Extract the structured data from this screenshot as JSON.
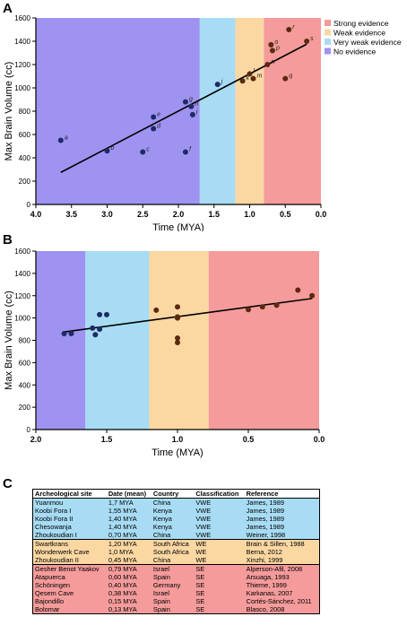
{
  "panels": {
    "a": "A",
    "b": "B",
    "c": "C"
  },
  "colors": {
    "no_evidence": "#9f93f2",
    "very_weak": "#a7dcf4",
    "weak": "#fbd7a2",
    "strong": "#f59b9b",
    "blue_points": "#1f2a66",
    "brown_points": "#5a2a10",
    "fit_line": "#000000"
  },
  "chart_a": {
    "type": "scatter",
    "xlabel": "Time (MYA)",
    "ylabel": "Max Brain Volume (cc)",
    "xlim": [
      4.0,
      0.0
    ],
    "ylim": [
      0,
      1600
    ],
    "xticks": [
      "4.0",
      "3.5",
      "3.0",
      "2.5",
      "2.0",
      "1.5",
      "1.0",
      "0.5",
      "0.0"
    ],
    "yticks": [
      "0",
      "200",
      "400",
      "600",
      "800",
      "1000",
      "1200",
      "1400",
      "1600"
    ],
    "bands": [
      {
        "from": 4.0,
        "to": 1.7,
        "color": "#9f93f2"
      },
      {
        "from": 1.7,
        "to": 1.2,
        "color": "#a7dcf4"
      },
      {
        "from": 1.2,
        "to": 0.8,
        "color": "#fbd7a2"
      },
      {
        "from": 0.8,
        "to": 0.0,
        "color": "#f59b9b"
      }
    ],
    "legend": {
      "placement": "top-right",
      "items": [
        {
          "label": "Strong evidence",
          "color": "#f59b9b"
        },
        {
          "label": "Weak evidence",
          "color": "#fbd7a2"
        },
        {
          "label": "Very weak evidence",
          "color": "#a7dcf4"
        },
        {
          "label": "No evidence",
          "color": "#9f93f2"
        }
      ]
    },
    "points": [
      {
        "x": 3.65,
        "y": 550,
        "label": "a",
        "group": "blue"
      },
      {
        "x": 3.0,
        "y": 460,
        "label": "b",
        "group": "blue"
      },
      {
        "x": 2.5,
        "y": 450,
        "label": "c",
        "group": "blue"
      },
      {
        "x": 2.35,
        "y": 650,
        "label": "d",
        "group": "blue"
      },
      {
        "x": 2.35,
        "y": 750,
        "label": "e",
        "group": "blue"
      },
      {
        "x": 1.9,
        "y": 450,
        "label": "f",
        "group": "blue"
      },
      {
        "x": 1.9,
        "y": 880,
        "label": "g",
        "group": "blue"
      },
      {
        "x": 1.82,
        "y": 840,
        "label": "h",
        "group": "blue"
      },
      {
        "x": 1.8,
        "y": 770,
        "label": "i",
        "group": "blue"
      },
      {
        "x": 1.45,
        "y": 1030,
        "label": "j",
        "group": "blue"
      },
      {
        "x": 1.1,
        "y": 1060,
        "label": "k",
        "group": "brown"
      },
      {
        "x": 1.0,
        "y": 1120,
        "label": "l",
        "group": "brown"
      },
      {
        "x": 0.95,
        "y": 1080,
        "label": "m",
        "group": "brown"
      },
      {
        "x": 0.75,
        "y": 1200,
        "label": "n",
        "group": "brown"
      },
      {
        "x": 0.7,
        "y": 1370,
        "label": "o",
        "group": "brown"
      },
      {
        "x": 0.68,
        "y": 1320,
        "label": "p",
        "group": "brown"
      },
      {
        "x": 0.5,
        "y": 1080,
        "label": "q",
        "group": "brown"
      },
      {
        "x": 0.45,
        "y": 1500,
        "label": "r",
        "group": "brown"
      },
      {
        "x": 0.2,
        "y": 1400,
        "label": "s",
        "group": "brown"
      }
    ],
    "fit": {
      "x": [
        3.65,
        0.2
      ],
      "y": [
        275,
        1375
      ]
    }
  },
  "chart_b": {
    "type": "scatter",
    "xlabel": "Time (MYA)",
    "ylabel": "Max Brain Volume (cc)",
    "xlim": [
      2.0,
      0.0
    ],
    "ylim": [
      0,
      1600
    ],
    "xticks": [
      "2.0",
      "1.5",
      "1.0",
      "0.5",
      "0.0"
    ],
    "yticks": [
      "0",
      "200",
      "400",
      "600",
      "800",
      "1000",
      "1200",
      "1400",
      "1600"
    ],
    "bands": [
      {
        "from": 2.0,
        "to": 1.65,
        "color": "#9f93f2"
      },
      {
        "from": 1.65,
        "to": 1.2,
        "color": "#a7dcf4"
      },
      {
        "from": 1.2,
        "to": 0.78,
        "color": "#fbd7a2"
      },
      {
        "from": 0.78,
        "to": 0.0,
        "color": "#f59b9b"
      }
    ],
    "points": [
      {
        "x": 1.8,
        "y": 860,
        "group": "blue"
      },
      {
        "x": 1.75,
        "y": 860,
        "group": "blue"
      },
      {
        "x": 1.6,
        "y": 910,
        "group": "blue"
      },
      {
        "x": 1.58,
        "y": 850,
        "group": "blue"
      },
      {
        "x": 1.55,
        "y": 900,
        "group": "blue"
      },
      {
        "x": 1.55,
        "y": 1030,
        "group": "blue"
      },
      {
        "x": 1.5,
        "y": 1030,
        "group": "blue"
      },
      {
        "x": 1.15,
        "y": 1070,
        "group": "brown"
      },
      {
        "x": 1.0,
        "y": 780,
        "group": "brown"
      },
      {
        "x": 1.0,
        "y": 820,
        "group": "brown"
      },
      {
        "x": 1.0,
        "y": 1000,
        "group": "brown"
      },
      {
        "x": 1.0,
        "y": 1010,
        "group": "brown"
      },
      {
        "x": 1.0,
        "y": 1100,
        "group": "brown"
      },
      {
        "x": 0.5,
        "y": 1075,
        "group": "brown"
      },
      {
        "x": 0.4,
        "y": 1100,
        "group": "brown"
      },
      {
        "x": 0.3,
        "y": 1115,
        "group": "brown"
      },
      {
        "x": 0.15,
        "y": 1250,
        "group": "brown"
      },
      {
        "x": 0.05,
        "y": 1200,
        "group": "brown"
      }
    ],
    "fit": {
      "x": [
        1.8,
        0.05
      ],
      "y": [
        875,
        1175
      ]
    }
  },
  "table": {
    "headers": [
      "Archeological site",
      "Date (mean)",
      "Country",
      "Classification",
      "Reference"
    ],
    "rows": [
      {
        "cls": "vwe",
        "cells": [
          "Yuanmou",
          "1,7 MYA",
          "China",
          "VWE",
          "James, 1989"
        ]
      },
      {
        "cls": "vwe",
        "cells": [
          "Koobi Fora I",
          "1,55 MYA",
          "Kenya",
          "VWE",
          "James, 1989"
        ]
      },
      {
        "cls": "vwe",
        "cells": [
          "Koobi Fora II",
          "1,40 MYA",
          "Kenya",
          "VWE",
          "James, 1989"
        ]
      },
      {
        "cls": "vwe",
        "cells": [
          "Chesowanja",
          "1,40 MYA",
          "Kenya",
          "VWE",
          "James, 1989"
        ]
      },
      {
        "cls": "vwe",
        "cells": [
          "Zhoukoudian I",
          "0,70 MYA",
          "China",
          "VWE",
          "Weiner, 1998"
        ]
      },
      {
        "cls": "we",
        "cells": [
          "Swartkrans",
          "1,20 MYA",
          "South Africa",
          "WE",
          "Brain & Sillen, 1988"
        ]
      },
      {
        "cls": "we",
        "cells": [
          "Wonderwerk Cave",
          "1,0 MYA",
          "South Africa",
          "WE",
          "Berna, 2012"
        ]
      },
      {
        "cls": "we",
        "cells": [
          "Zhoukoudian II",
          "0,45 MYA",
          "China",
          "WE",
          "Xinzhi, 1999"
        ]
      },
      {
        "cls": "se",
        "cells": [
          "Gesher Benot Yaakov",
          "0,79 MYA",
          "Israel",
          "SE",
          "Alperson-Afil, 2008"
        ]
      },
      {
        "cls": "se",
        "cells": [
          "Atapuerca",
          "0,60 MYA",
          "Spain",
          "SE",
          "Arsuaga, 1993"
        ]
      },
      {
        "cls": "se",
        "cells": [
          "Schöningen",
          "0,40 MYA",
          "Germany",
          "SE",
          "Thieme, 1999"
        ]
      },
      {
        "cls": "se",
        "cells": [
          "Qesem Cave",
          "0,38 MYA",
          "Israel",
          "SE",
          "Karkanas, 2007"
        ]
      },
      {
        "cls": "se",
        "cells": [
          "Bajondillo",
          "0,15 MYA",
          "Spain",
          "SE",
          "Cortés-Sánchez, 2011"
        ]
      },
      {
        "cls": "se",
        "cells": [
          "Bolomar",
          "0,13 MYA",
          "Spain",
          "SE",
          "Blasco, 2008"
        ]
      }
    ]
  }
}
